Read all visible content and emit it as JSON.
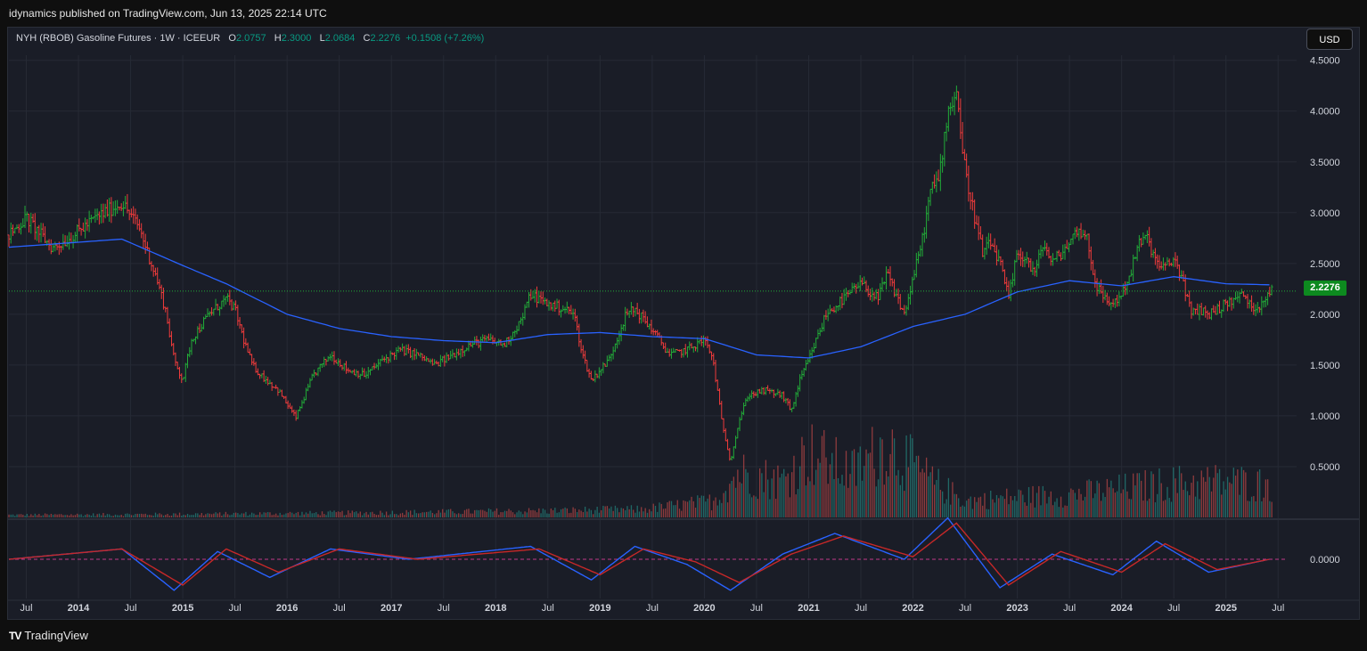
{
  "header": {
    "published": "idynamics published on TradingView.com, Jun 13, 2025 22:14 UTC"
  },
  "legend": {
    "symbol": "NYH (RBOB) Gasoline Futures · 1W · ICEEUR",
    "o_label": "O",
    "o_value": "2.0757",
    "h_label": "H",
    "h_value": "2.3000",
    "l_label": "L",
    "l_value": "2.0684",
    "c_label": "C",
    "c_value": "2.2276",
    "change": "+0.1508 (+7.26%)"
  },
  "currency_button": "USD",
  "last_price_tag": "2.2276",
  "footer": {
    "brand": "TradingView",
    "logo": "TV"
  },
  "colors": {
    "up": "#26a69a",
    "up_bar": "#22ab38",
    "down": "#ef3b3b",
    "ma": "#2962ff",
    "background": "#1a1d27",
    "price_tag": "#0d8a1f"
  },
  "chart_data": [
    {
      "type": "ohlc",
      "series_name": "NYH (RBOB) Gasoline Futures",
      "interval": "1W",
      "y_axis": {
        "ticks": [
          4.5,
          4.0,
          3.5,
          3.0,
          2.5,
          2.0,
          1.5,
          1.0,
          0.5
        ],
        "tick_labels": [
          "4.5000",
          "4.0000",
          "3.5000",
          "3.0000",
          "2.5000",
          "2.0000",
          "1.5000",
          "1.0000",
          "0.5000"
        ],
        "range": [
          0.0,
          4.55
        ]
      },
      "x_axis": {
        "labels": [
          "Jul",
          "2014",
          "Jul",
          "2015",
          "Jul",
          "2016",
          "Jul",
          "2017",
          "Jul",
          "2018",
          "Jul",
          "2019",
          "Jul",
          "2020",
          "Jul",
          "2021",
          "Jul",
          "2022",
          "Jul",
          "2023",
          "Jul",
          "2024",
          "Jul",
          "2025",
          "Jul"
        ],
        "range": [
          "2013-05",
          "2025-08"
        ]
      },
      "last_close": 2.2276,
      "price_path": [
        [
          "2013-05",
          2.78
        ],
        [
          "2013-07",
          2.95
        ],
        [
          "2013-10",
          2.65
        ],
        [
          "2013-12",
          2.75
        ],
        [
          "2014-03",
          2.95
        ],
        [
          "2014-05",
          3.05
        ],
        [
          "2014-06",
          3.1
        ],
        [
          "2014-08",
          2.85
        ],
        [
          "2014-10",
          2.35
        ],
        [
          "2014-11",
          2.05
        ],
        [
          "2014-12",
          1.55
        ],
        [
          "2015-01",
          1.35
        ],
        [
          "2015-02",
          1.75
        ],
        [
          "2015-04",
          2.0
        ],
        [
          "2015-06",
          2.15
        ],
        [
          "2015-07",
          2.05
        ],
        [
          "2015-08",
          1.75
        ],
        [
          "2015-09",
          1.5
        ],
        [
          "2015-10",
          1.4
        ],
        [
          "2015-12",
          1.25
        ],
        [
          "2016-02",
          0.98
        ],
        [
          "2016-04",
          1.4
        ],
        [
          "2016-06",
          1.6
        ],
        [
          "2016-08",
          1.45
        ],
        [
          "2016-10",
          1.4
        ],
        [
          "2016-12",
          1.55
        ],
        [
          "2017-02",
          1.65
        ],
        [
          "2017-04",
          1.6
        ],
        [
          "2017-06",
          1.5
        ],
        [
          "2017-08",
          1.6
        ],
        [
          "2017-10",
          1.7
        ],
        [
          "2017-12",
          1.75
        ],
        [
          "2018-02",
          1.7
        ],
        [
          "2018-04",
          1.95
        ],
        [
          "2018-05",
          2.2
        ],
        [
          "2018-07",
          2.1
        ],
        [
          "2018-09",
          2.05
        ],
        [
          "2018-10",
          2.0
        ],
        [
          "2018-11",
          1.6
        ],
        [
          "2018-12",
          1.35
        ],
        [
          "2019-02",
          1.55
        ],
        [
          "2019-04",
          2.0
        ],
        [
          "2019-05",
          2.05
        ],
        [
          "2019-07",
          1.85
        ],
        [
          "2019-09",
          1.6
        ],
        [
          "2019-11",
          1.65
        ],
        [
          "2019-12",
          1.7
        ],
        [
          "2020-01",
          1.75
        ],
        [
          "2020-02",
          1.55
        ],
        [
          "2020-03",
          0.95
        ],
        [
          "2020-04",
          0.55
        ],
        [
          "2020-05",
          0.95
        ],
        [
          "2020-06",
          1.2
        ],
        [
          "2020-08",
          1.25
        ],
        [
          "2020-10",
          1.2
        ],
        [
          "2020-11",
          1.05
        ],
        [
          "2020-12",
          1.35
        ],
        [
          "2021-01",
          1.55
        ],
        [
          "2021-03",
          2.0
        ],
        [
          "2021-05",
          2.15
        ],
        [
          "2021-07",
          2.3
        ],
        [
          "2021-09",
          2.15
        ],
        [
          "2021-10",
          2.4
        ],
        [
          "2021-12",
          2.0
        ],
        [
          "2022-02",
          2.7
        ],
        [
          "2022-03",
          3.2
        ],
        [
          "2022-04",
          3.35
        ],
        [
          "2022-05",
          4.0
        ],
        [
          "2022-06",
          4.2
        ],
        [
          "2022-07",
          3.4
        ],
        [
          "2022-08",
          3.0
        ],
        [
          "2022-09",
          2.6
        ],
        [
          "2022-10",
          2.7
        ],
        [
          "2022-11",
          2.5
        ],
        [
          "2022-12",
          2.15
        ],
        [
          "2023-01",
          2.6
        ],
        [
          "2023-02",
          2.55
        ],
        [
          "2023-03",
          2.4
        ],
        [
          "2023-04",
          2.7
        ],
        [
          "2023-05",
          2.5
        ],
        [
          "2023-06",
          2.6
        ],
        [
          "2023-07",
          2.7
        ],
        [
          "2023-08",
          2.85
        ],
        [
          "2023-09",
          2.75
        ],
        [
          "2023-10",
          2.3
        ],
        [
          "2023-11",
          2.15
        ],
        [
          "2023-12",
          2.1
        ],
        [
          "2024-01",
          2.2
        ],
        [
          "2024-02",
          2.4
        ],
        [
          "2024-03",
          2.7
        ],
        [
          "2024-04",
          2.75
        ],
        [
          "2024-05",
          2.5
        ],
        [
          "2024-06",
          2.45
        ],
        [
          "2024-07",
          2.55
        ],
        [
          "2024-08",
          2.35
        ],
        [
          "2024-09",
          2.0
        ],
        [
          "2024-10",
          2.05
        ],
        [
          "2024-11",
          2.0
        ],
        [
          "2024-12",
          2.05
        ],
        [
          "2025-01",
          2.1
        ],
        [
          "2025-02",
          2.15
        ],
        [
          "2025-03",
          2.2
        ],
        [
          "2025-04",
          2.05
        ],
        [
          "2025-05",
          2.1
        ],
        [
          "2025-06",
          2.23
        ]
      ],
      "moving_average": [
        [
          "2013-05",
          2.66
        ],
        [
          "2014-06",
          2.74
        ],
        [
          "2015-01",
          2.48
        ],
        [
          "2015-06",
          2.3
        ],
        [
          "2016-01",
          2.0
        ],
        [
          "2016-07",
          1.86
        ],
        [
          "2017-01",
          1.78
        ],
        [
          "2017-07",
          1.74
        ],
        [
          "2018-01",
          1.72
        ],
        [
          "2018-07",
          1.8
        ],
        [
          "2019-01",
          1.82
        ],
        [
          "2019-07",
          1.78
        ],
        [
          "2020-01",
          1.76
        ],
        [
          "2020-07",
          1.6
        ],
        [
          "2021-01",
          1.57
        ],
        [
          "2021-07",
          1.68
        ],
        [
          "2022-01",
          1.88
        ],
        [
          "2022-07",
          2.0
        ],
        [
          "2023-01",
          2.22
        ],
        [
          "2023-07",
          2.33
        ],
        [
          "2024-01",
          2.28
        ],
        [
          "2024-07",
          2.37
        ],
        [
          "2025-01",
          2.3
        ],
        [
          "2025-06",
          2.29
        ]
      ]
    },
    {
      "type": "bar",
      "series_name": "Volume",
      "note": "volume bars on the price panel",
      "profile": [
        [
          "2013-05",
          0.03
        ],
        [
          "2015-01",
          0.04
        ],
        [
          "2017-01",
          0.06
        ],
        [
          "2018-06",
          0.08
        ],
        [
          "2019-06",
          0.1
        ],
        [
          "2020-02",
          0.2
        ],
        [
          "2020-05",
          0.55
        ],
        [
          "2020-10",
          0.45
        ],
        [
          "2021-01",
          0.8
        ],
        [
          "2021-06",
          0.55
        ],
        [
          "2021-10",
          0.9
        ],
        [
          "2022-03",
          0.45
        ],
        [
          "2022-07",
          0.2
        ],
        [
          "2023-01",
          0.25
        ],
        [
          "2023-07",
          0.28
        ],
        [
          "2024-01",
          0.35
        ],
        [
          "2024-07",
          0.42
        ],
        [
          "2025-01",
          0.44
        ],
        [
          "2025-06",
          0.4
        ]
      ]
    },
    {
      "type": "line",
      "series_name": "Oscillator",
      "y_axis": {
        "ticks": [
          0.0
        ],
        "tick_labels": [
          "0.0000"
        ]
      },
      "series": [
        {
          "name": "fast",
          "color": "#2962ff",
          "points": [
            [
              "2013-05",
              0.0
            ],
            [
              "2014-06",
              0.04
            ],
            [
              "2014-12",
              -0.12
            ],
            [
              "2015-05",
              0.03
            ],
            [
              "2015-11",
              -0.07
            ],
            [
              "2016-06",
              0.04
            ],
            [
              "2017-03",
              0.0
            ],
            [
              "2018-05",
              0.05
            ],
            [
              "2018-12",
              -0.08
            ],
            [
              "2019-05",
              0.05
            ],
            [
              "2019-11",
              -0.02
            ],
            [
              "2020-04",
              -0.12
            ],
            [
              "2020-10",
              0.02
            ],
            [
              "2021-04",
              0.1
            ],
            [
              "2021-12",
              0.0
            ],
            [
              "2022-05",
              0.16
            ],
            [
              "2022-11",
              -0.11
            ],
            [
              "2023-05",
              0.02
            ],
            [
              "2023-12",
              -0.06
            ],
            [
              "2024-05",
              0.07
            ],
            [
              "2024-11",
              -0.05
            ],
            [
              "2025-06",
              0.0
            ]
          ]
        },
        {
          "name": "slow",
          "color": "#c62828",
          "points": [
            [
              "2013-05",
              0.0
            ],
            [
              "2014-06",
              0.04
            ],
            [
              "2015-01",
              -0.1
            ],
            [
              "2015-06",
              0.04
            ],
            [
              "2015-12",
              -0.05
            ],
            [
              "2016-07",
              0.04
            ],
            [
              "2017-04",
              0.0
            ],
            [
              "2018-06",
              0.04
            ],
            [
              "2019-01",
              -0.06
            ],
            [
              "2019-06",
              0.04
            ],
            [
              "2019-12",
              -0.01
            ],
            [
              "2020-05",
              -0.09
            ],
            [
              "2020-11",
              0.02
            ],
            [
              "2021-05",
              0.09
            ],
            [
              "2022-01",
              0.01
            ],
            [
              "2022-06",
              0.14
            ],
            [
              "2022-12",
              -0.1
            ],
            [
              "2023-06",
              0.03
            ],
            [
              "2024-01",
              -0.05
            ],
            [
              "2024-06",
              0.06
            ],
            [
              "2024-12",
              -0.04
            ],
            [
              "2025-06",
              0.0
            ]
          ]
        }
      ]
    }
  ]
}
